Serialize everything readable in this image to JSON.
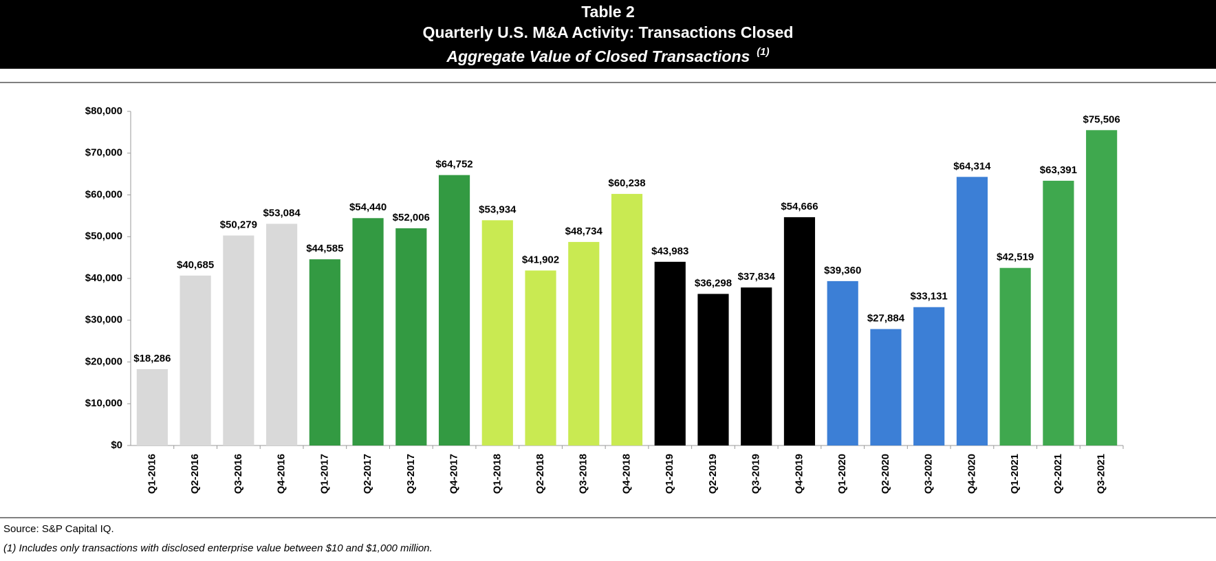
{
  "chart_data": {
    "type": "bar",
    "table_label": "Table 2",
    "title": "Quarterly U.S. M&A Activity: Transactions Closed",
    "subtitle": "Aggregate Value of Closed Transactions",
    "subtitle_note": "(1)",
    "categories": [
      "Q1-2016",
      "Q2-2016",
      "Q3-2016",
      "Q4-2016",
      "Q1-2017",
      "Q2-2017",
      "Q3-2017",
      "Q4-2017",
      "Q1-2018",
      "Q2-2018",
      "Q3-2018",
      "Q4-2018",
      "Q1-2019",
      "Q2-2019",
      "Q3-2019",
      "Q4-2019",
      "Q1-2020",
      "Q2-2020",
      "Q3-2020",
      "Q4-2020",
      "Q1-2021",
      "Q2-2021",
      "Q3-2021"
    ],
    "values": [
      18286,
      40685,
      50279,
      53084,
      44585,
      54440,
      52006,
      64752,
      53934,
      41902,
      48734,
      60238,
      43983,
      36298,
      37834,
      54666,
      39360,
      27884,
      33131,
      64314,
      42519,
      63391,
      75506
    ],
    "value_labels": [
      "$18,286",
      "$40,685",
      "$50,279",
      "$53,084",
      "$44,585",
      "$54,440",
      "$52,006",
      "$64,752",
      "$53,934",
      "$41,902",
      "$48,734",
      "$60,238",
      "$43,983",
      "$36,298",
      "$37,834",
      "$54,666",
      "$39,360",
      "$27,884",
      "$33,131",
      "$64,314",
      "$42,519",
      "$63,391",
      "$75,506"
    ],
    "colors": [
      "#d9d9d9",
      "#d9d9d9",
      "#d9d9d9",
      "#d9d9d9",
      "#339a42",
      "#339a42",
      "#339a42",
      "#339a42",
      "#c9ea52",
      "#c9ea52",
      "#c9ea52",
      "#c9ea52",
      "#000000",
      "#000000",
      "#000000",
      "#000000",
      "#3c7fd6",
      "#3c7fd6",
      "#3c7fd6",
      "#3c7fd6",
      "#3fa84e",
      "#3fa84e",
      "#3fa84e"
    ],
    "ylim": [
      0,
      80000
    ],
    "yticks": [
      {
        "value": 0,
        "label": "$0"
      },
      {
        "value": 10000,
        "label": "$10,000"
      },
      {
        "value": 20000,
        "label": "$20,000"
      },
      {
        "value": 30000,
        "label": "$30,000"
      },
      {
        "value": 40000,
        "label": "$40,000"
      },
      {
        "value": 50000,
        "label": "$50,000"
      },
      {
        "value": 60000,
        "label": "$60,000"
      },
      {
        "value": 70000,
        "label": "$70,000"
      },
      {
        "value": 80000,
        "label": "$80,000"
      }
    ],
    "grid": false,
    "source": "Source: S&P Capital IQ.",
    "footnote": "(1)  Includes only transactions with disclosed enterprise value between $10 and $1,000 million."
  }
}
